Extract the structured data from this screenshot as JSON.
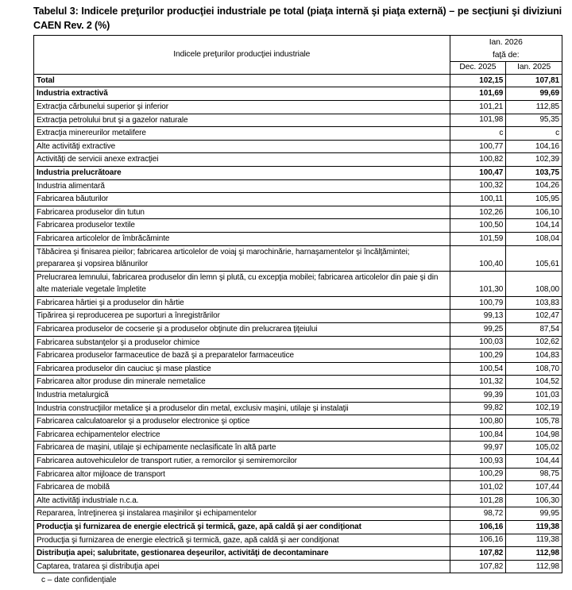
{
  "title": "Tabelul 3: Indicele preţurilor producţiei industriale pe total (piaţa internă şi piaţa externă) – pe secţiuni şi diviziuni CAEN Rev. 2 (%)",
  "header": {
    "row_label": "Indicele preţurilor producţiei industriale",
    "period": "Ian. 2026",
    "compared_to": "faţă de:",
    "col1": "Dec. 2025",
    "col2": "Ian. 2025"
  },
  "rows": [
    {
      "label": "Total",
      "dec": "102,15",
      "jan": "107,81",
      "bold": true
    },
    {
      "label": "Industria extractivă",
      "dec": "101,69",
      "jan": "99,69",
      "bold": true
    },
    {
      "label": "Extracţia cărbunelui superior şi inferior",
      "dec": "101,21",
      "jan": "112,85"
    },
    {
      "label": "Extracţia petrolului brut şi a gazelor naturale",
      "dec": "101,98",
      "jan": "95,35"
    },
    {
      "label": "Extracţia minereurilor metalifere",
      "dec": "c",
      "jan": "c"
    },
    {
      "label": "Alte activităţi extractive",
      "dec": "100,77",
      "jan": "104,16"
    },
    {
      "label": "Activităţi de servicii anexe extracţiei",
      "dec": "100,82",
      "jan": "102,39"
    },
    {
      "label": "Industria prelucrătoare",
      "dec": "100,47",
      "jan": "103,75",
      "bold": true
    },
    {
      "label": "Industria alimentară",
      "dec": "100,32",
      "jan": "104,26"
    },
    {
      "label": "Fabricarea băuturilor",
      "dec": "100,11",
      "jan": "105,95"
    },
    {
      "label": "Fabricarea produselor din tutun",
      "dec": "102,26",
      "jan": "106,10"
    },
    {
      "label": "Fabricarea produselor textile",
      "dec": "100,50",
      "jan": "104,14"
    },
    {
      "label": "Fabricarea articolelor de îmbrăcăminte",
      "dec": "101,59",
      "jan": "108,04"
    },
    {
      "label": "Tăbăcirea şi finisarea pieilor; fabricarea articolelor de voiaj şi marochinărie, harnaşamentelor şi încălţămintei; prepararea şi vopsirea blănurilor",
      "dec": "100,40",
      "jan": "105,61"
    },
    {
      "label": "Prelucrarea lemnului, fabricarea produselor din lemn şi plută, cu excepţia mobilei; fabricarea articolelor din paie şi din alte materiale vegetale împletite",
      "dec": "101,30",
      "jan": "108,00"
    },
    {
      "label": "Fabricarea hârtiei şi a produselor din hârtie",
      "dec": "100,79",
      "jan": "103,83"
    },
    {
      "label": "Tipărirea şi reproducerea pe suporturi a înregistrărilor",
      "dec": "99,13",
      "jan": "102,47"
    },
    {
      "label": "Fabricarea produselor de cocserie şi a produselor obţinute din prelucrarea ţiţeiului",
      "dec": "99,25",
      "jan": "87,54"
    },
    {
      "label": "Fabricarea substanţelor şi a produselor chimice",
      "dec": "100,03",
      "jan": "102,62"
    },
    {
      "label": "Fabricarea produselor farmaceutice de bază şi a preparatelor farmaceutice",
      "dec": "100,29",
      "jan": "104,83"
    },
    {
      "label": "Fabricarea produselor din cauciuc şi mase plastice",
      "dec": "100,54",
      "jan": "108,70"
    },
    {
      "label": "Fabricarea altor produse din minerale nemetalice",
      "dec": "101,32",
      "jan": "104,52"
    },
    {
      "label": "Industria metalurgică",
      "dec": "99,39",
      "jan": "101,03"
    },
    {
      "label": "Industria construcţiilor metalice şi a produselor din metal, exclusiv maşini, utilaje şi instalaţii",
      "dec": "99,82",
      "jan": "102,19"
    },
    {
      "label": "Fabricarea calculatoarelor şi a produselor electronice şi optice",
      "dec": "100,80",
      "jan": "105,78"
    },
    {
      "label": "Fabricarea echipamentelor electrice",
      "dec": "100,84",
      "jan": "104,98"
    },
    {
      "label": "Fabricarea de maşini, utilaje şi echipamente neclasificate în altă parte",
      "dec": "99,97",
      "jan": "105,02"
    },
    {
      "label": "Fabricarea autovehiculelor de transport rutier, a remorcilor şi semiremorcilor",
      "dec": "100,93",
      "jan": "104,44"
    },
    {
      "label": "Fabricarea altor mijloace de transport",
      "dec": "100,29",
      "jan": "98,75"
    },
    {
      "label": "Fabricarea de mobilă",
      "dec": "101,02",
      "jan": "107,44"
    },
    {
      "label": "Alte activităţi industriale n.c.a.",
      "dec": "101,28",
      "jan": "106,30"
    },
    {
      "label": "Repararea, întreţinerea şi instalarea maşinilor şi echipamentelor",
      "dec": "98,72",
      "jan": "99,95"
    },
    {
      "label": "Producţia şi furnizarea de energie electrică şi termică, gaze, apă caldă şi aer condiţionat",
      "dec": "106,16",
      "jan": "119,38",
      "bold": true
    },
    {
      "label": "Producţia şi furnizarea de energie electrică şi termică, gaze, apă caldă şi aer condiţionat",
      "dec": "106,16",
      "jan": "119,38"
    },
    {
      "label": "Distribuţia apei; salubritate, gestionarea deşeurilor, activităţi de decontaminare",
      "dec": "107,82",
      "jan": "112,98",
      "bold": true
    },
    {
      "label": "Captarea, tratarea şi distribuţia apei",
      "dec": "107,82",
      "jan": "112,98"
    }
  ],
  "footnote": "c – date confidenţiale"
}
